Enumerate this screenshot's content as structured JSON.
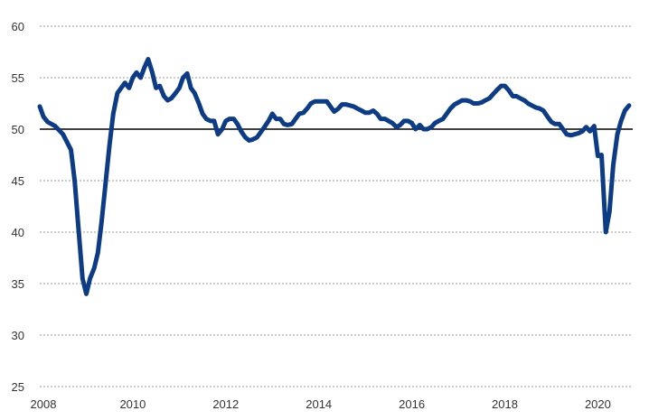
{
  "chart_data": {
    "type": "line",
    "title": "",
    "xlabel": "",
    "ylabel": "",
    "xlim": [
      2008,
      2020.75
    ],
    "ylim": [
      25,
      60
    ],
    "grid": true,
    "legend": "none",
    "reference_line": 50,
    "y_ticks": [
      "25",
      "30",
      "35",
      "40",
      "45",
      "50",
      "55",
      "60"
    ],
    "x_ticks": [
      "2008",
      "2010",
      "2012",
      "2014",
      "2016",
      "2018",
      "2020"
    ],
    "series": [
      {
        "color": "#0d3c85",
        "points": [
          [
            2008.0,
            52.2
          ],
          [
            2008.08,
            51.2
          ],
          [
            2008.17,
            50.7
          ],
          [
            2008.33,
            50.3
          ],
          [
            2008.5,
            49.5
          ],
          [
            2008.67,
            48.0
          ],
          [
            2008.75,
            45.0
          ],
          [
            2008.83,
            40.5
          ],
          [
            2008.92,
            35.5
          ],
          [
            2009.0,
            34.0
          ],
          [
            2009.08,
            35.5
          ],
          [
            2009.17,
            36.5
          ],
          [
            2009.25,
            38.0
          ],
          [
            2009.33,
            41.0
          ],
          [
            2009.42,
            45.0
          ],
          [
            2009.5,
            48.5
          ],
          [
            2009.58,
            51.5
          ],
          [
            2009.67,
            53.5
          ],
          [
            2009.75,
            54.0
          ],
          [
            2009.83,
            54.5
          ],
          [
            2009.92,
            54.0
          ],
          [
            2010.0,
            55.0
          ],
          [
            2010.08,
            55.5
          ],
          [
            2010.17,
            55.0
          ],
          [
            2010.25,
            56.0
          ],
          [
            2010.33,
            56.8
          ],
          [
            2010.42,
            55.5
          ],
          [
            2010.5,
            54.0
          ],
          [
            2010.58,
            54.2
          ],
          [
            2010.67,
            53.2
          ],
          [
            2010.75,
            52.8
          ],
          [
            2010.83,
            53.0
          ],
          [
            2010.92,
            53.5
          ],
          [
            2011.0,
            54.0
          ],
          [
            2011.08,
            55.0
          ],
          [
            2011.17,
            55.4
          ],
          [
            2011.25,
            54.0
          ],
          [
            2011.33,
            53.5
          ],
          [
            2011.42,
            52.5
          ],
          [
            2011.5,
            51.5
          ],
          [
            2011.58,
            51.0
          ],
          [
            2011.67,
            50.8
          ],
          [
            2011.75,
            50.8
          ],
          [
            2011.83,
            49.5
          ],
          [
            2011.92,
            50.0
          ],
          [
            2012.0,
            50.8
          ],
          [
            2012.08,
            51.0
          ],
          [
            2012.17,
            51.0
          ],
          [
            2012.25,
            50.5
          ],
          [
            2012.33,
            49.8
          ],
          [
            2012.42,
            49.2
          ],
          [
            2012.5,
            48.9
          ],
          [
            2012.58,
            49.0
          ],
          [
            2012.67,
            49.2
          ],
          [
            2012.75,
            49.7
          ],
          [
            2012.83,
            50.2
          ],
          [
            2012.92,
            50.8
          ],
          [
            2013.0,
            51.5
          ],
          [
            2013.08,
            51.0
          ],
          [
            2013.17,
            51.0
          ],
          [
            2013.25,
            50.5
          ],
          [
            2013.33,
            50.4
          ],
          [
            2013.42,
            50.5
          ],
          [
            2013.5,
            51.0
          ],
          [
            2013.58,
            51.5
          ],
          [
            2013.67,
            51.6
          ],
          [
            2013.75,
            52.0
          ],
          [
            2013.83,
            52.5
          ],
          [
            2013.92,
            52.7
          ],
          [
            2014.0,
            52.7
          ],
          [
            2014.08,
            52.7
          ],
          [
            2014.17,
            52.7
          ],
          [
            2014.25,
            52.2
          ],
          [
            2014.33,
            51.7
          ],
          [
            2014.42,
            52.0
          ],
          [
            2014.5,
            52.4
          ],
          [
            2014.58,
            52.4
          ],
          [
            2014.67,
            52.3
          ],
          [
            2014.75,
            52.2
          ],
          [
            2014.83,
            52.0
          ],
          [
            2014.92,
            51.8
          ],
          [
            2015.0,
            51.6
          ],
          [
            2015.08,
            51.6
          ],
          [
            2015.17,
            51.8
          ],
          [
            2015.25,
            51.5
          ],
          [
            2015.33,
            51.0
          ],
          [
            2015.42,
            51.0
          ],
          [
            2015.5,
            50.8
          ],
          [
            2015.58,
            50.6
          ],
          [
            2015.67,
            50.2
          ],
          [
            2015.75,
            50.4
          ],
          [
            2015.83,
            50.8
          ],
          [
            2015.92,
            50.8
          ],
          [
            2016.0,
            50.6
          ],
          [
            2016.08,
            50.0
          ],
          [
            2016.17,
            50.4
          ],
          [
            2016.25,
            50.0
          ],
          [
            2016.33,
            50.0
          ],
          [
            2016.42,
            50.2
          ],
          [
            2016.5,
            50.6
          ],
          [
            2016.58,
            50.8
          ],
          [
            2016.67,
            51.0
          ],
          [
            2016.75,
            51.5
          ],
          [
            2016.83,
            52.0
          ],
          [
            2016.92,
            52.4
          ],
          [
            2017.0,
            52.6
          ],
          [
            2017.08,
            52.8
          ],
          [
            2017.17,
            52.8
          ],
          [
            2017.25,
            52.7
          ],
          [
            2017.33,
            52.5
          ],
          [
            2017.42,
            52.5
          ],
          [
            2017.5,
            52.6
          ],
          [
            2017.58,
            52.8
          ],
          [
            2017.67,
            53.0
          ],
          [
            2017.75,
            53.4
          ],
          [
            2017.83,
            53.8
          ],
          [
            2017.92,
            54.2
          ],
          [
            2018.0,
            54.2
          ],
          [
            2018.08,
            53.8
          ],
          [
            2018.17,
            53.2
          ],
          [
            2018.25,
            53.2
          ],
          [
            2018.33,
            53.0
          ],
          [
            2018.42,
            52.8
          ],
          [
            2018.5,
            52.5
          ],
          [
            2018.58,
            52.3
          ],
          [
            2018.67,
            52.1
          ],
          [
            2018.75,
            52.0
          ],
          [
            2018.83,
            51.8
          ],
          [
            2018.92,
            51.2
          ],
          [
            2019.0,
            50.7
          ],
          [
            2019.08,
            50.5
          ],
          [
            2019.17,
            50.5
          ],
          [
            2019.25,
            50.0
          ],
          [
            2019.33,
            49.5
          ],
          [
            2019.42,
            49.4
          ],
          [
            2019.5,
            49.5
          ],
          [
            2019.58,
            49.6
          ],
          [
            2019.67,
            49.8
          ],
          [
            2019.75,
            50.2
          ],
          [
            2019.83,
            49.8
          ],
          [
            2019.92,
            50.3
          ],
          [
            2020.0,
            47.4
          ],
          [
            2020.08,
            47.5
          ],
          [
            2020.17,
            40.0
          ],
          [
            2020.25,
            42.0
          ],
          [
            2020.33,
            46.5
          ],
          [
            2020.42,
            49.5
          ],
          [
            2020.5,
            50.8
          ],
          [
            2020.58,
            51.8
          ],
          [
            2020.67,
            52.3
          ]
        ]
      }
    ]
  }
}
